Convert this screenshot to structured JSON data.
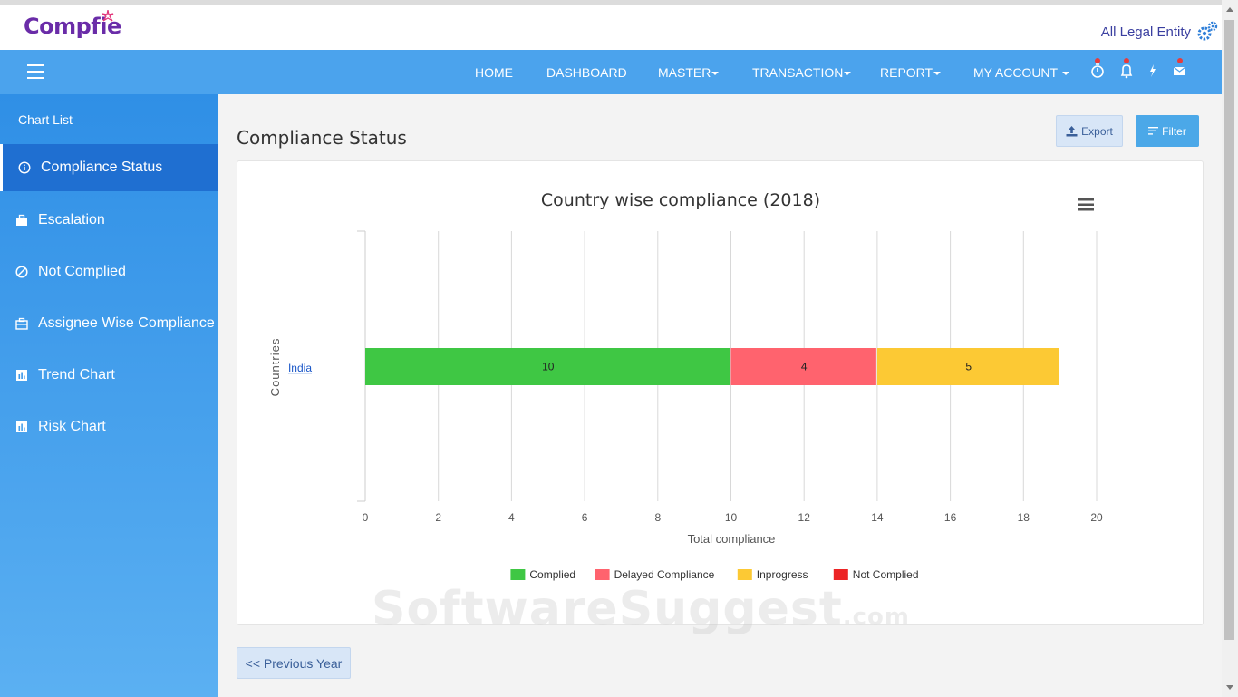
{
  "brand": {
    "name": "Compfie"
  },
  "header": {
    "entity_label": "All Legal Entity"
  },
  "nav": {
    "items": [
      {
        "label": "HOME",
        "dropdown": false
      },
      {
        "label": "DASHBOARD",
        "dropdown": false
      },
      {
        "label": "MASTER",
        "dropdown": true
      },
      {
        "label": "TRANSACTION",
        "dropdown": true
      },
      {
        "label": "REPORT",
        "dropdown": true
      },
      {
        "label": "MY ACCOUNT",
        "dropdown": true
      }
    ],
    "icons": [
      "stopwatch-icon",
      "bell-icon",
      "bolt-icon",
      "envelope-icon"
    ]
  },
  "sidebar": {
    "heading": "Chart List",
    "items": [
      {
        "label": "Compliance Status",
        "icon": "info-circle-icon",
        "active": true
      },
      {
        "label": "Escalation",
        "icon": "briefcase-icon",
        "active": false
      },
      {
        "label": "Not Complied",
        "icon": "ban-icon",
        "active": false
      },
      {
        "label": "Assignee Wise Compliance",
        "icon": "toolbox-icon",
        "active": false
      },
      {
        "label": "Trend Chart",
        "icon": "bar-chart-icon",
        "active": false
      },
      {
        "label": "Risk Chart",
        "icon": "bar-chart-icon",
        "active": false
      }
    ]
  },
  "main": {
    "title": "Compliance Status",
    "export_label": "Export",
    "filter_label": "Filter",
    "prev_label": "<< Previous Year"
  },
  "watermark": {
    "text": "SoftwareSuggest",
    "suffix": ".com"
  },
  "colors": {
    "navbar": "#4ba3ed",
    "complied": "#3fc744",
    "delayed": "#ff636e",
    "inprogress": "#fcc934",
    "not_complied": "#ec2425"
  },
  "chart_data": {
    "type": "bar",
    "orientation": "horizontal",
    "stacked": true,
    "title": "Country wise compliance (2018)",
    "xlabel": "Total compliance",
    "ylabel": "Countries",
    "categories": [
      "India"
    ],
    "xlim": [
      0,
      20
    ],
    "xticks": [
      0,
      2,
      4,
      6,
      8,
      10,
      12,
      14,
      16,
      18,
      20
    ],
    "grid": true,
    "legend_position": "bottom",
    "series": [
      {
        "name": "Complied",
        "values": [
          10
        ],
        "color": "#3fc744"
      },
      {
        "name": "Delayed Compliance",
        "values": [
          4
        ],
        "color": "#ff636e"
      },
      {
        "name": "Inprogress",
        "values": [
          5
        ],
        "color": "#fcc934"
      },
      {
        "name": "Not Complied",
        "values": [
          0
        ],
        "color": "#ec2425"
      }
    ]
  }
}
